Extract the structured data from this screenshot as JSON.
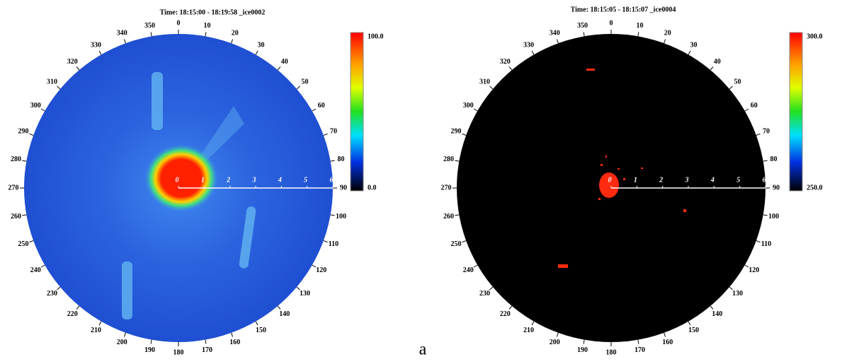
{
  "panels": [
    {
      "title": "Time: 18:15:00  - 18:19:58     _ice0002",
      "azimuth_labels": [
        0,
        10,
        20,
        30,
        40,
        50,
        60,
        70,
        80,
        90,
        100,
        110,
        120,
        130,
        140,
        150,
        160,
        170,
        180,
        190,
        200,
        210,
        220,
        230,
        240,
        250,
        260,
        270,
        280,
        290,
        300,
        310,
        320,
        330,
        340,
        350
      ],
      "range_labels": [
        0,
        1,
        2,
        3,
        4,
        5,
        6
      ],
      "colorbar_max": "100.0",
      "colorbar_min": "0.0"
    },
    {
      "title": "Time: 18:15:05  - 18:15:07     _ice0004",
      "azimuth_labels": [
        0,
        10,
        20,
        30,
        40,
        50,
        60,
        70,
        80,
        90,
        100,
        110,
        120,
        130,
        140,
        150,
        160,
        170,
        180,
        190,
        200,
        210,
        220,
        230,
        240,
        250,
        260,
        270,
        280,
        290,
        300,
        310,
        320,
        330,
        340,
        350
      ],
      "range_labels": [
        0,
        1,
        2,
        3,
        4,
        5,
        6
      ],
      "colorbar_max": "300.0",
      "colorbar_min": "250.0"
    }
  ],
  "caption": "a"
}
